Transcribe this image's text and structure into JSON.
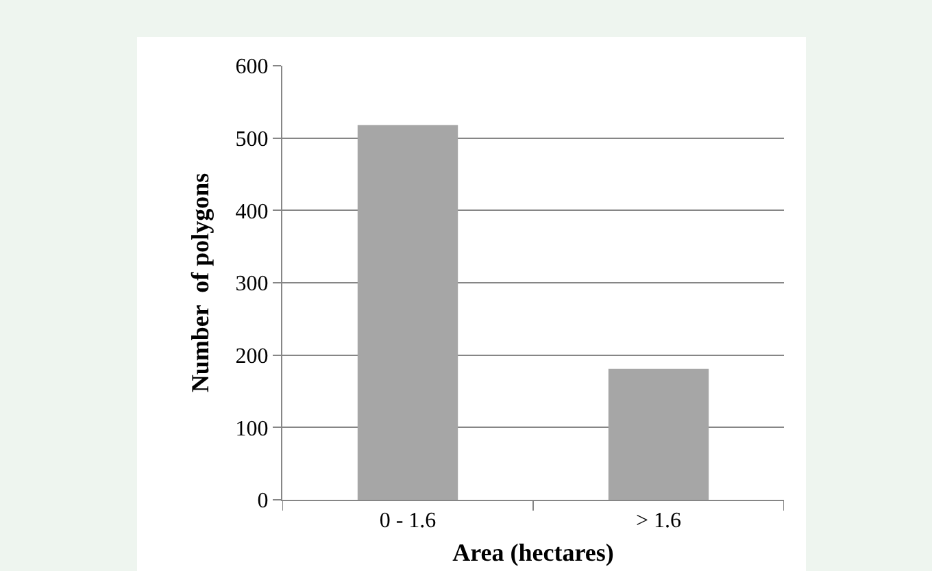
{
  "chart_data": {
    "type": "bar",
    "xlabel": "Area (hectares)",
    "ylabel": "Number  of polygons",
    "categories": [
      "0 - 1.6",
      "> 1.6"
    ],
    "values": [
      518,
      181
    ],
    "color": "#a6a6a6",
    "ylim": [
      0,
      600
    ],
    "yticks": [
      0,
      100,
      200,
      300,
      400,
      500,
      600
    ],
    "grid": "y"
  }
}
